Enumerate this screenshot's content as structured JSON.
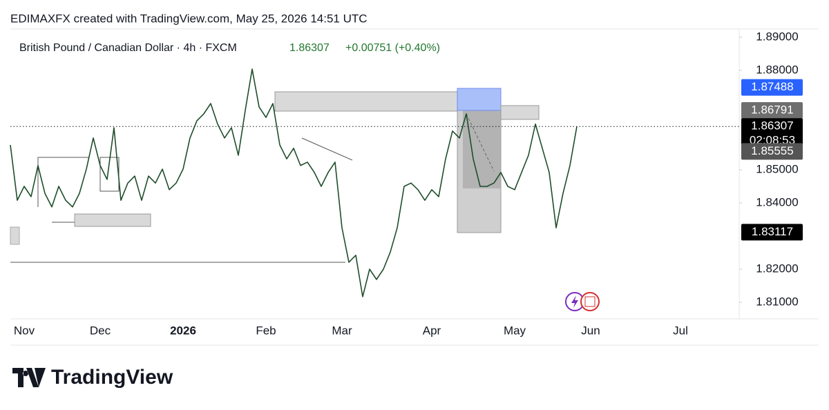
{
  "header": {
    "title": "EDIMAXFX created with TradingView.com, May 25, 2026 14:51 UTC"
  },
  "chart_data": {
    "type": "line",
    "title": "British Pound / Canadian Dollar · 4h · FXCM",
    "last_price": "1.86307",
    "change": "+0.00751 (+0.40%)",
    "categories": [
      null,
      null,
      "Nov",
      null,
      null,
      null,
      null,
      null,
      null,
      null,
      null,
      null,
      null,
      "Dec",
      null,
      null,
      null,
      null,
      null,
      null,
      null,
      null,
      null,
      null,
      null,
      "2026",
      null,
      null,
      null,
      null,
      null,
      null,
      null,
      null,
      null,
      null,
      null,
      "Feb",
      null,
      null,
      null,
      null,
      null,
      null,
      null,
      null,
      null,
      null,
      "Mar",
      null,
      null,
      null,
      null,
      null,
      null,
      null,
      null,
      null,
      null,
      null,
      null,
      "Apr",
      null,
      null,
      null,
      null,
      null,
      null,
      null,
      null,
      null,
      null,
      null,
      "May",
      null,
      null,
      null,
      null,
      null,
      null,
      null,
      null,
      null,
      null,
      "Jun",
      null,
      null,
      null,
      null,
      null,
      null,
      null,
      null,
      null,
      null,
      null,
      null,
      "Jul",
      null,
      null,
      null,
      null,
      null,
      null,
      null,
      null
    ],
    "series": [
      {
        "color": "#1e4d2b",
        "values": [
          1.8575,
          1.8408,
          1.845,
          1.8419,
          1.8513,
          1.8429,
          1.8388,
          1.845,
          1.8408,
          1.8388,
          1.8429,
          1.8502,
          1.8596,
          1.8513,
          1.8471,
          1.8627,
          1.8408,
          1.846,
          1.8481,
          1.8408,
          1.8481,
          1.846,
          1.8502,
          1.844,
          1.846,
          1.8502,
          1.8596,
          1.8648,
          1.8669,
          1.87,
          1.8638,
          1.8596,
          1.8627,
          1.8544,
          1.8679,
          1.8804,
          1.869,
          1.8658,
          1.87,
          1.8575,
          1.8533,
          1.8565,
          1.8513,
          1.8523,
          1.8492,
          1.845,
          1.8492,
          1.8523,
          1.8325,
          1.8221,
          1.8242,
          1.8117,
          1.82,
          1.8169,
          1.82,
          1.8252,
          1.8325,
          1.845,
          1.846,
          1.844,
          1.8408,
          1.844,
          1.8419,
          1.8533,
          1.8617,
          1.8596,
          1.8669,
          1.8533,
          1.845,
          1.845,
          1.846,
          1.8492,
          1.845,
          1.844,
          1.8492,
          1.8544,
          1.8638,
          1.8565,
          1.8492,
          1.8325,
          1.8429,
          1.8513,
          1.86307,
          null,
          null,
          null,
          null,
          null,
          null,
          null,
          null,
          null,
          null,
          null,
          null,
          null,
          null,
          null,
          null,
          null,
          null,
          null,
          null,
          null,
          null,
          null
        ]
      }
    ],
    "ylim": [
      1.805,
      1.8925
    ],
    "yticks": [
      {
        "value": 1.89,
        "label": "1.89000"
      },
      {
        "value": 1.88,
        "label": "1.88000"
      },
      {
        "value": 1.85,
        "label": "1.85000"
      },
      {
        "value": 1.84,
        "label": "1.84000"
      },
      {
        "value": 1.82,
        "label": "1.82000"
      },
      {
        "value": 1.81,
        "label": "1.81000"
      }
    ],
    "price_labels": [
      {
        "value": 1.87488,
        "label": "1.87488",
        "color": "#2962ff"
      },
      {
        "value": 1.86791,
        "label": "1.86791",
        "color": "#6e6e6e"
      },
      {
        "value": 1.86307,
        "label": "1.86307",
        "color": "#000000",
        "countdown": "02:08:53"
      },
      {
        "value": 1.85555,
        "label": "1.85555",
        "color": "#555555"
      },
      {
        "value": 1.83117,
        "label": "1.83117",
        "color": "#000000"
      }
    ]
  },
  "footer": {
    "brand": "TradingView"
  }
}
